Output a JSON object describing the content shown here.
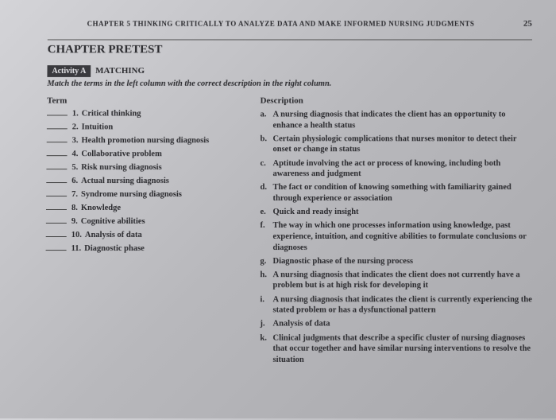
{
  "page_number": "25",
  "chapter_header": "CHAPTER 5   THINKING CRITICALLY TO ANALYZE DATA AND MAKE INFORMED NURSING JUDGMENTS",
  "section_title": "CHAPTER PRETEST",
  "activity_badge": "Activity A",
  "activity_name": "MATCHING",
  "instruction": "Match the terms in the left column with the correct description in the right column.",
  "term_header": "Term",
  "desc_header": "Description",
  "terms": [
    {
      "n": "1.",
      "t": "Critical thinking"
    },
    {
      "n": "2.",
      "t": "Intuition"
    },
    {
      "n": "3.",
      "t": "Health promotion nursing diagnosis"
    },
    {
      "n": "4.",
      "t": "Collaborative problem"
    },
    {
      "n": "5.",
      "t": "Risk nursing diagnosis"
    },
    {
      "n": "6.",
      "t": "Actual nursing diagnosis"
    },
    {
      "n": "7.",
      "t": "Syndrome nursing diagnosis"
    },
    {
      "n": "8.",
      "t": "Knowledge"
    },
    {
      "n": "9.",
      "t": "Cognitive abilities"
    },
    {
      "n": "10.",
      "t": "Analysis of data"
    },
    {
      "n": "11.",
      "t": "Diagnostic phase"
    }
  ],
  "descriptions": [
    {
      "l": "a.",
      "t": "A nursing diagnosis that indicates the client has an opportunity to enhance a health status"
    },
    {
      "l": "b.",
      "t": "Certain physiologic complications that nurses monitor to detect their onset or change in status"
    },
    {
      "l": "c.",
      "t": "Aptitude involving the act or process of knowing, including both awareness and judgment"
    },
    {
      "l": "d.",
      "t": "The fact or condition of knowing something with familiarity gained through experience or association"
    },
    {
      "l": "e.",
      "t": "Quick and ready insight"
    },
    {
      "l": "f.",
      "t": "The way in which one processes information using knowledge, past experience, intuition, and cognitive abilities to formulate conclusions or diagnoses"
    },
    {
      "l": "g.",
      "t": "Diagnostic phase of the nursing process"
    },
    {
      "l": "h.",
      "t": "A nursing diagnosis that indicates the client does not currently have a problem but is at high risk for developing it"
    },
    {
      "l": "i.",
      "t": "A nursing diagnosis that indicates the client is currently experiencing the stated problem or has a dysfunctional pattern"
    },
    {
      "l": "j.",
      "t": "Analysis of data"
    },
    {
      "l": "k.",
      "t": "Clinical judgments that describe a specific cluster of nursing diagnoses that occur together and have similar nursing interventions to resolve the situation"
    }
  ]
}
